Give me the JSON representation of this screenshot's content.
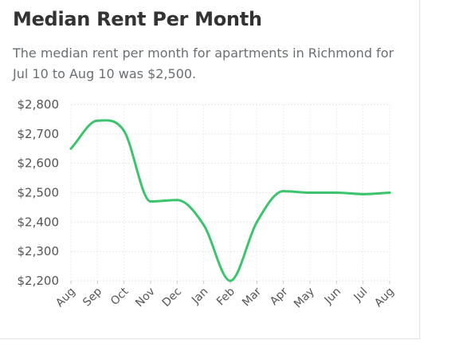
{
  "card": {
    "title": "Median Rent Per Month",
    "subtitle": "The median rent per month for apartments in Richmond for Jul 10 to Aug 10 was $2,500."
  },
  "chart_data": {
    "type": "line",
    "title": "Median Rent Per Month",
    "xlabel": "",
    "ylabel": "",
    "categories": [
      "Aug",
      "Sep",
      "Oct",
      "Nov",
      "Dec",
      "Jan",
      "Feb",
      "Mar",
      "Apr",
      "May",
      "Jun",
      "Jul",
      "Aug"
    ],
    "y_ticks": [
      "$2,800",
      "$2,700",
      "$2,600",
      "$2,500",
      "$2,400",
      "$2,300",
      "$2,200"
    ],
    "ylim": [
      2200,
      2800
    ],
    "grid": true,
    "line_color": "#3cc46d",
    "series": [
      {
        "values": [
          2650,
          2745,
          2710,
          2470,
          2475,
          2390,
          2200,
          2400,
          2505,
          2500,
          2500,
          2495,
          2500
        ]
      }
    ]
  }
}
